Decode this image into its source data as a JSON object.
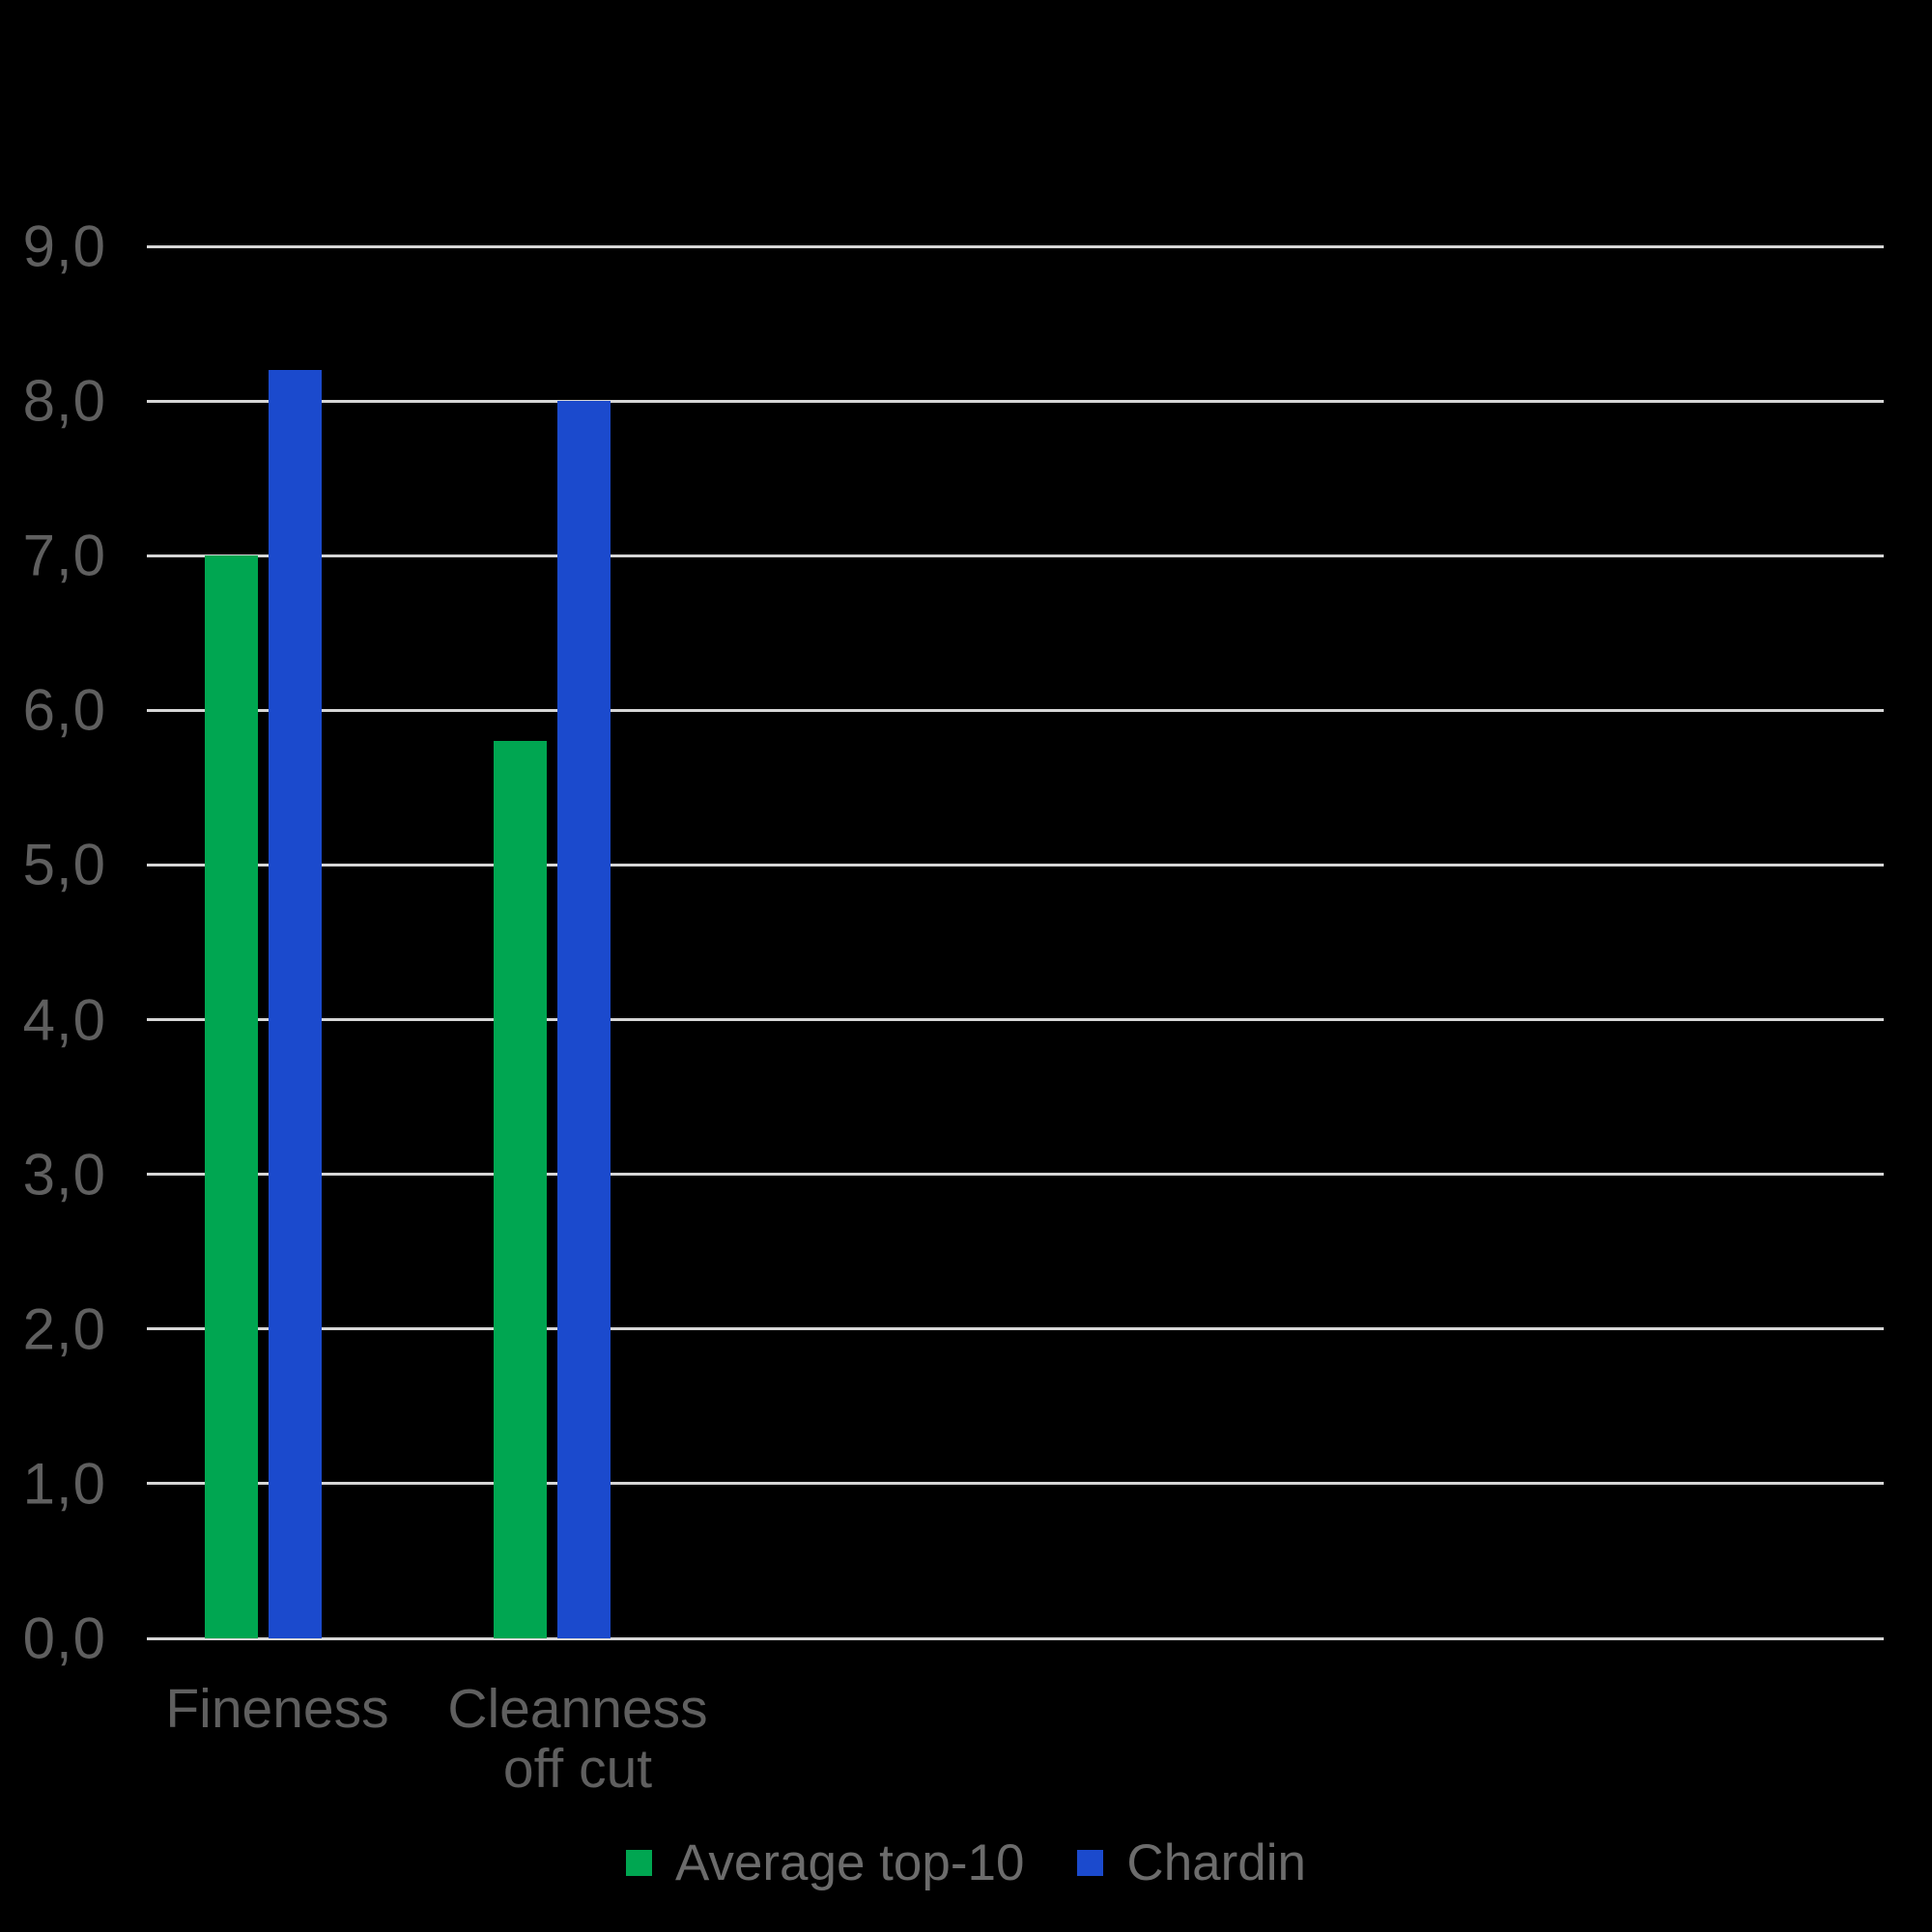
{
  "chart_data": {
    "type": "bar",
    "title": "",
    "categories": [
      "Fineness",
      "Cleanness off cut"
    ],
    "category_label_lines": [
      [
        "Fineness"
      ],
      [
        "Cleanness",
        "off cut"
      ]
    ],
    "series": [
      {
        "name": "Average top-10",
        "color": "#00A651",
        "values": [
          7.0,
          5.8
        ]
      },
      {
        "name": "Chardin",
        "color": "#1B4ACD",
        "values": [
          8.2,
          8.0
        ]
      }
    ],
    "ylabel": "",
    "xlabel": "",
    "ylim": [
      0.0,
      9.0
    ],
    "ytick_step": 1.0,
    "ytick_labels": [
      "0,0",
      "1,0",
      "2,0",
      "3,0",
      "4,0",
      "5,0",
      "6,0",
      "7,0",
      "8,0",
      "9,0"
    ],
    "grid": true,
    "legend_position": "bottom",
    "colors": {
      "background": "#000000",
      "gridline": "#D6D6D6",
      "axis_text": "#5F5F5F",
      "category_text": "#5F5F5F",
      "legend_text": "#6C6C6C"
    }
  }
}
